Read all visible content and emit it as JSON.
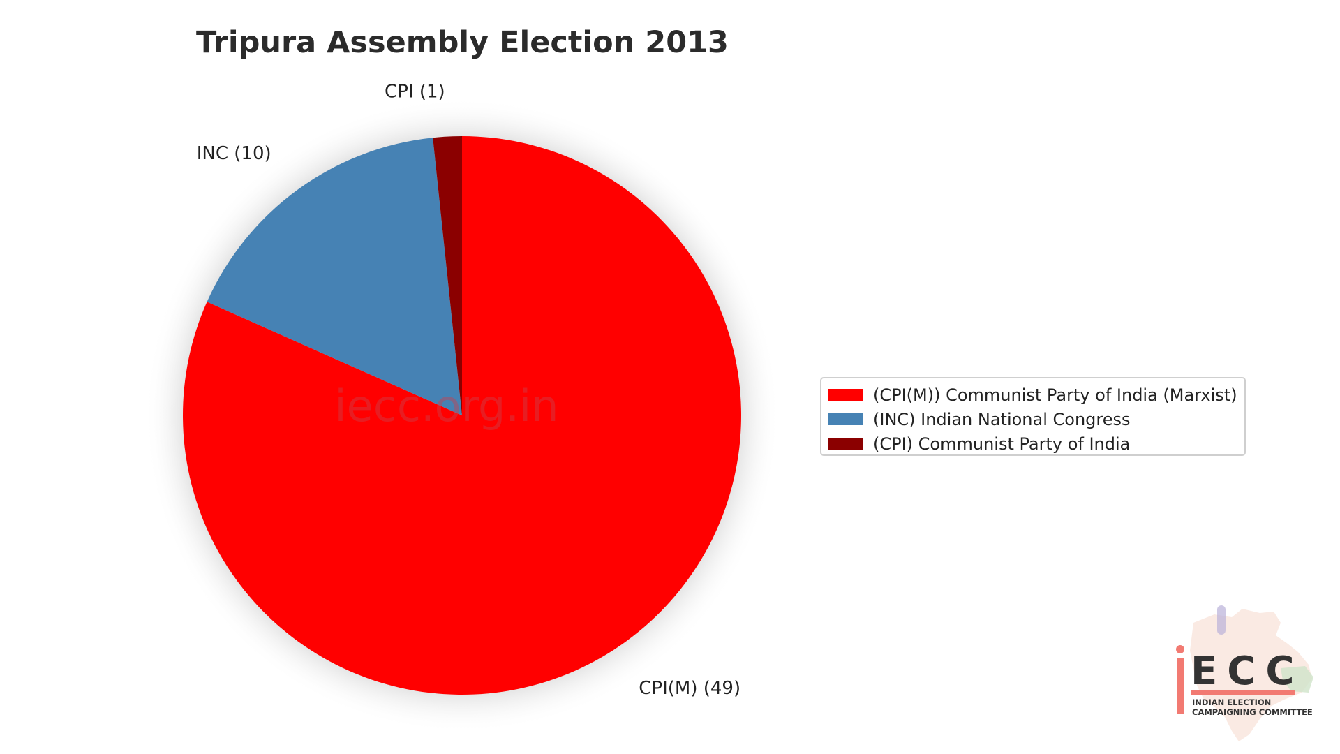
{
  "chart_data": {
    "type": "pie",
    "title": "Tripura Assembly Election 2013",
    "slices": [
      {
        "party": "CPI(M)",
        "value": 49,
        "label": "CPI(M) (49)",
        "legend": "(CPI(M)) Communist Party of India (Marxist)",
        "color": "#ff0000"
      },
      {
        "party": "INC",
        "value": 10,
        "label": "INC (10)",
        "legend": "(INC) Indian National Congress",
        "color": "#4682b4"
      },
      {
        "party": "CPI",
        "value": 1,
        "label": "CPI (1)",
        "legend": "(CPI) Communist Party of India",
        "color": "#8b0000"
      }
    ],
    "start_angle_deg": 90,
    "direction": "clockwise",
    "legend_placement": "right",
    "watermark": "iecc.org.in"
  },
  "logo": {
    "wordmark": "ECC",
    "line1": "INDIAN ELECTION",
    "line2": "CAMPAIGNING COMMITTEE",
    "accent_color": "#f27a72"
  }
}
